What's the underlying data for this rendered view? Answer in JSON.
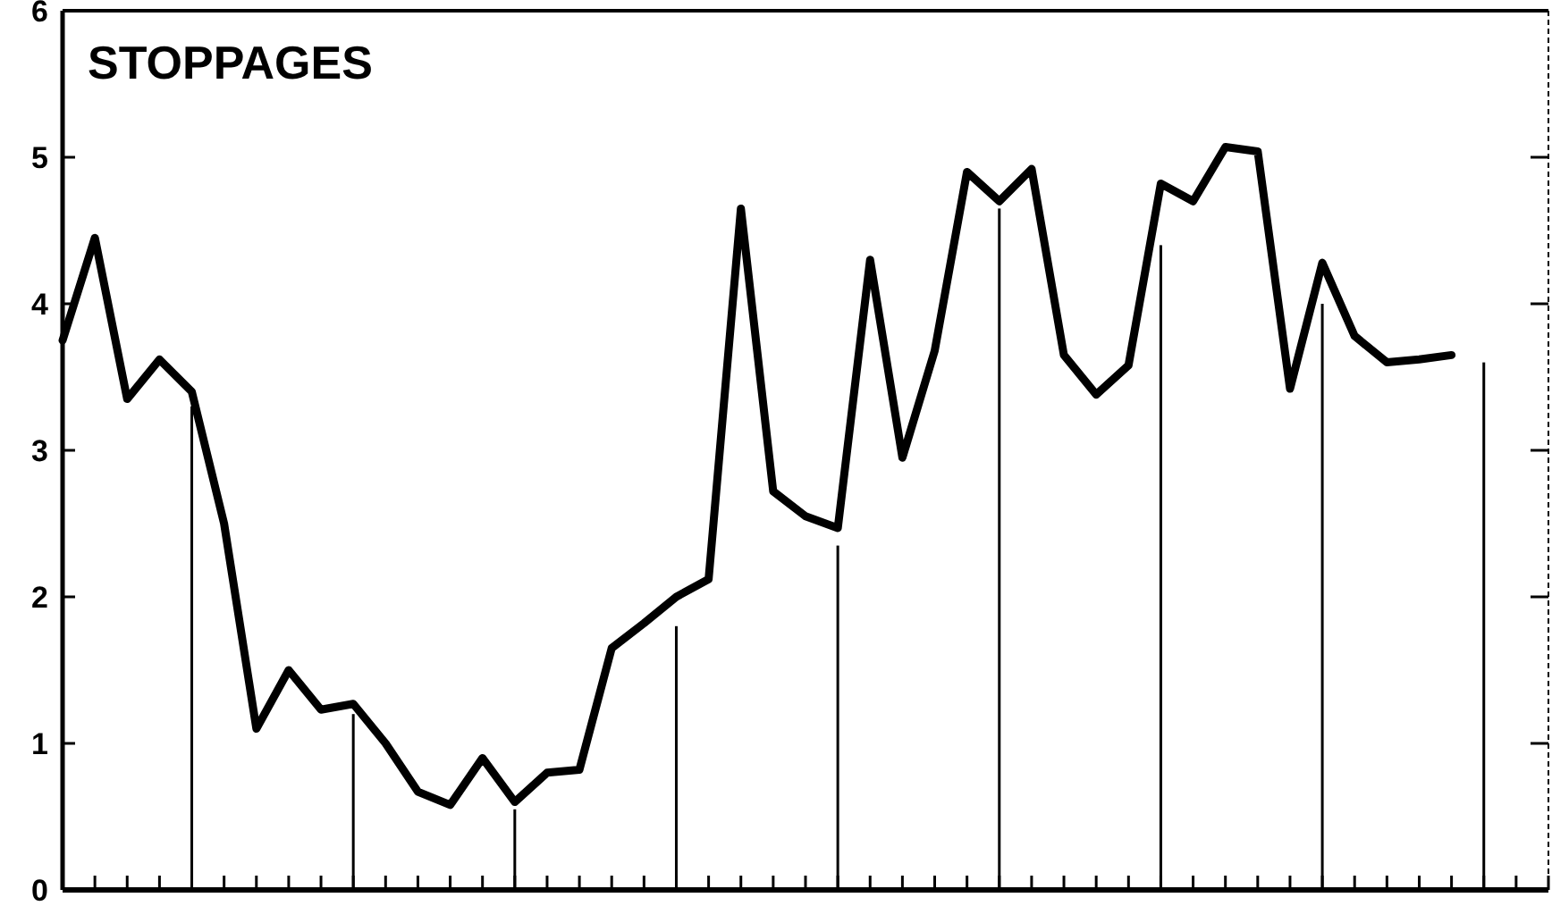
{
  "chart_data": {
    "type": "line",
    "title": "STOPPAGES",
    "categories": [
      null,
      null,
      null,
      null,
      null,
      null,
      null,
      null,
      null,
      null,
      null,
      null,
      null,
      null,
      null,
      null,
      null,
      null,
      null,
      null,
      null,
      null,
      null,
      null,
      null,
      null,
      null,
      null,
      null,
      null,
      null,
      null,
      null,
      null,
      null,
      null,
      null,
      null,
      null,
      null,
      null,
      null,
      null,
      null,
      null,
      null,
      null
    ],
    "series": [
      {
        "color": "#000000",
        "values": [
          3.75,
          4.45,
          3.35,
          3.62,
          3.4,
          2.5,
          1.1,
          1.5,
          1.23,
          1.27,
          1.0,
          0.67,
          0.58,
          0.9,
          0.6,
          0.8,
          0.82,
          1.65,
          1.82,
          2.0,
          2.12,
          4.65,
          2.72,
          2.55,
          2.47,
          4.3,
          2.95,
          3.68,
          4.9,
          4.7,
          4.92,
          3.65,
          3.38,
          3.58,
          4.82,
          4.7,
          5.07,
          5.04,
          3.42,
          4.28,
          3.78,
          3.6,
          3.62,
          3.65,
          null,
          null,
          null
        ]
      },
      {
        "type": "bar",
        "color": "#000000",
        "values": [
          null,
          null,
          null,
          null,
          3.3,
          null,
          null,
          null,
          null,
          1.2,
          null,
          null,
          null,
          null,
          0.55,
          null,
          null,
          null,
          null,
          1.8,
          null,
          null,
          null,
          null,
          2.35,
          null,
          null,
          null,
          null,
          4.65,
          null,
          null,
          null,
          null,
          4.4,
          null,
          null,
          null,
          null,
          4.0,
          null,
          null,
          null,
          null,
          3.6,
          null,
          null
        ]
      }
    ],
    "ylim": [
      0,
      6
    ],
    "yticks": [
      0,
      1,
      2,
      3,
      4,
      5,
      6
    ],
    "grid": false,
    "tick_labels": "y",
    "marker": "none",
    "line_style": "solid"
  }
}
